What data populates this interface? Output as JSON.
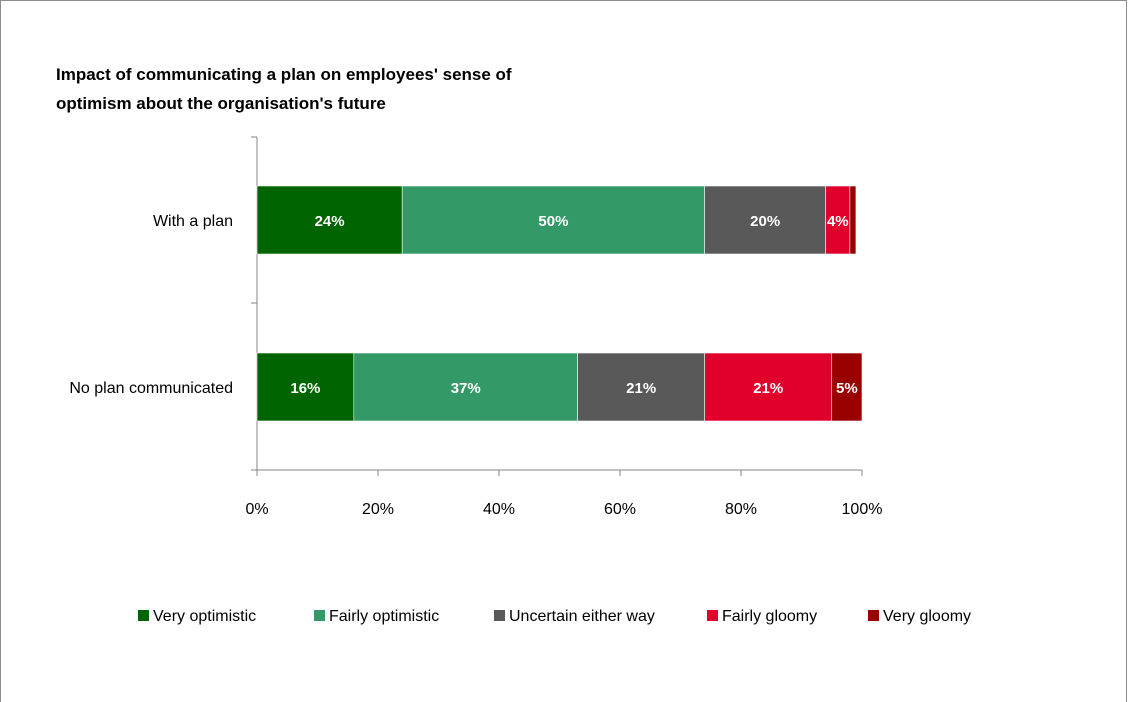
{
  "chart_data": {
    "type": "bar",
    "orientation": "horizontal",
    "stacked": true,
    "title": "Impact of communicating a plan on employees' sense of optimism about the organisation's future",
    "title_lines": [
      "Impact of communicating a plan on employees' sense of",
      "optimism about the organisation's future"
    ],
    "categories": [
      "With a plan",
      "No plan communicated"
    ],
    "series": [
      {
        "name": "Very optimistic",
        "color": "#006400",
        "values": [
          24,
          16
        ],
        "labels": [
          "24%",
          "16%"
        ]
      },
      {
        "name": "Fairly optimistic",
        "color": "#339966",
        "values": [
          50,
          37
        ],
        "labels": [
          "50%",
          "37%"
        ]
      },
      {
        "name": "Uncertain either way",
        "color": "#595959",
        "values": [
          20,
          21
        ],
        "labels": [
          "20%",
          "21%"
        ]
      },
      {
        "name": "Fairly gloomy",
        "color": "#e0002b",
        "values": [
          4,
          21
        ],
        "labels": [
          "4%",
          "21%"
        ]
      },
      {
        "name": "Very gloomy",
        "color": "#990000",
        "values": [
          1,
          5
        ],
        "labels": [
          "",
          "5%"
        ]
      }
    ],
    "xlim": [
      0,
      100
    ],
    "x_ticks": [
      "0%",
      "20%",
      "40%",
      "60%",
      "80%",
      "100%"
    ],
    "xlabel": "",
    "ylabel": "",
    "grid": false,
    "legend_position": "bottom"
  }
}
